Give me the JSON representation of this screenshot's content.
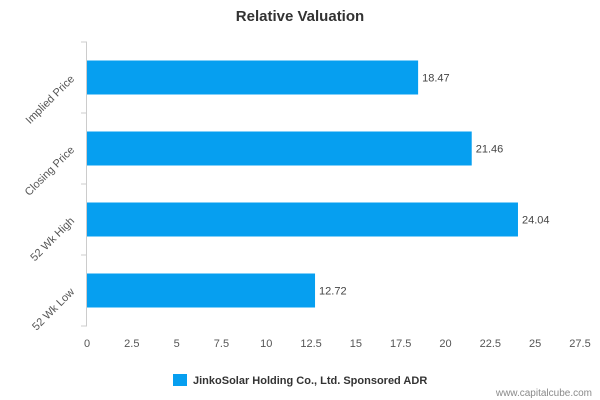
{
  "chart_data": {
    "type": "bar",
    "orientation": "horizontal",
    "title": "Relative Valuation",
    "categories": [
      "Implied Price",
      "Closing Price",
      "52 Wk High",
      "52 Wk Low"
    ],
    "series": [
      {
        "name": "JinkoSolar Holding Co., Ltd. Sponsored ADR",
        "values": [
          18.47,
          21.46,
          24.04,
          12.72
        ],
        "labels": [
          "18.47",
          "21.46",
          "24.04",
          "12.72"
        ],
        "color": "#069ff0"
      }
    ],
    "xlim": [
      0,
      27.5
    ],
    "xticks": [
      0,
      2.5,
      5,
      7.5,
      10,
      12.5,
      15,
      17.5,
      20,
      22.5,
      25,
      27.5
    ],
    "xtick_labels": [
      "0",
      "2.5",
      "5",
      "7.5",
      "10",
      "12.5",
      "15",
      "17.5",
      "20",
      "22.5",
      "25",
      "27.5"
    ],
    "grid": false,
    "legend_position": "bottom-center"
  },
  "watermark": "www.capitalcube.com",
  "colors": {
    "bar": "#069ff0",
    "axis": "#cccccc"
  }
}
